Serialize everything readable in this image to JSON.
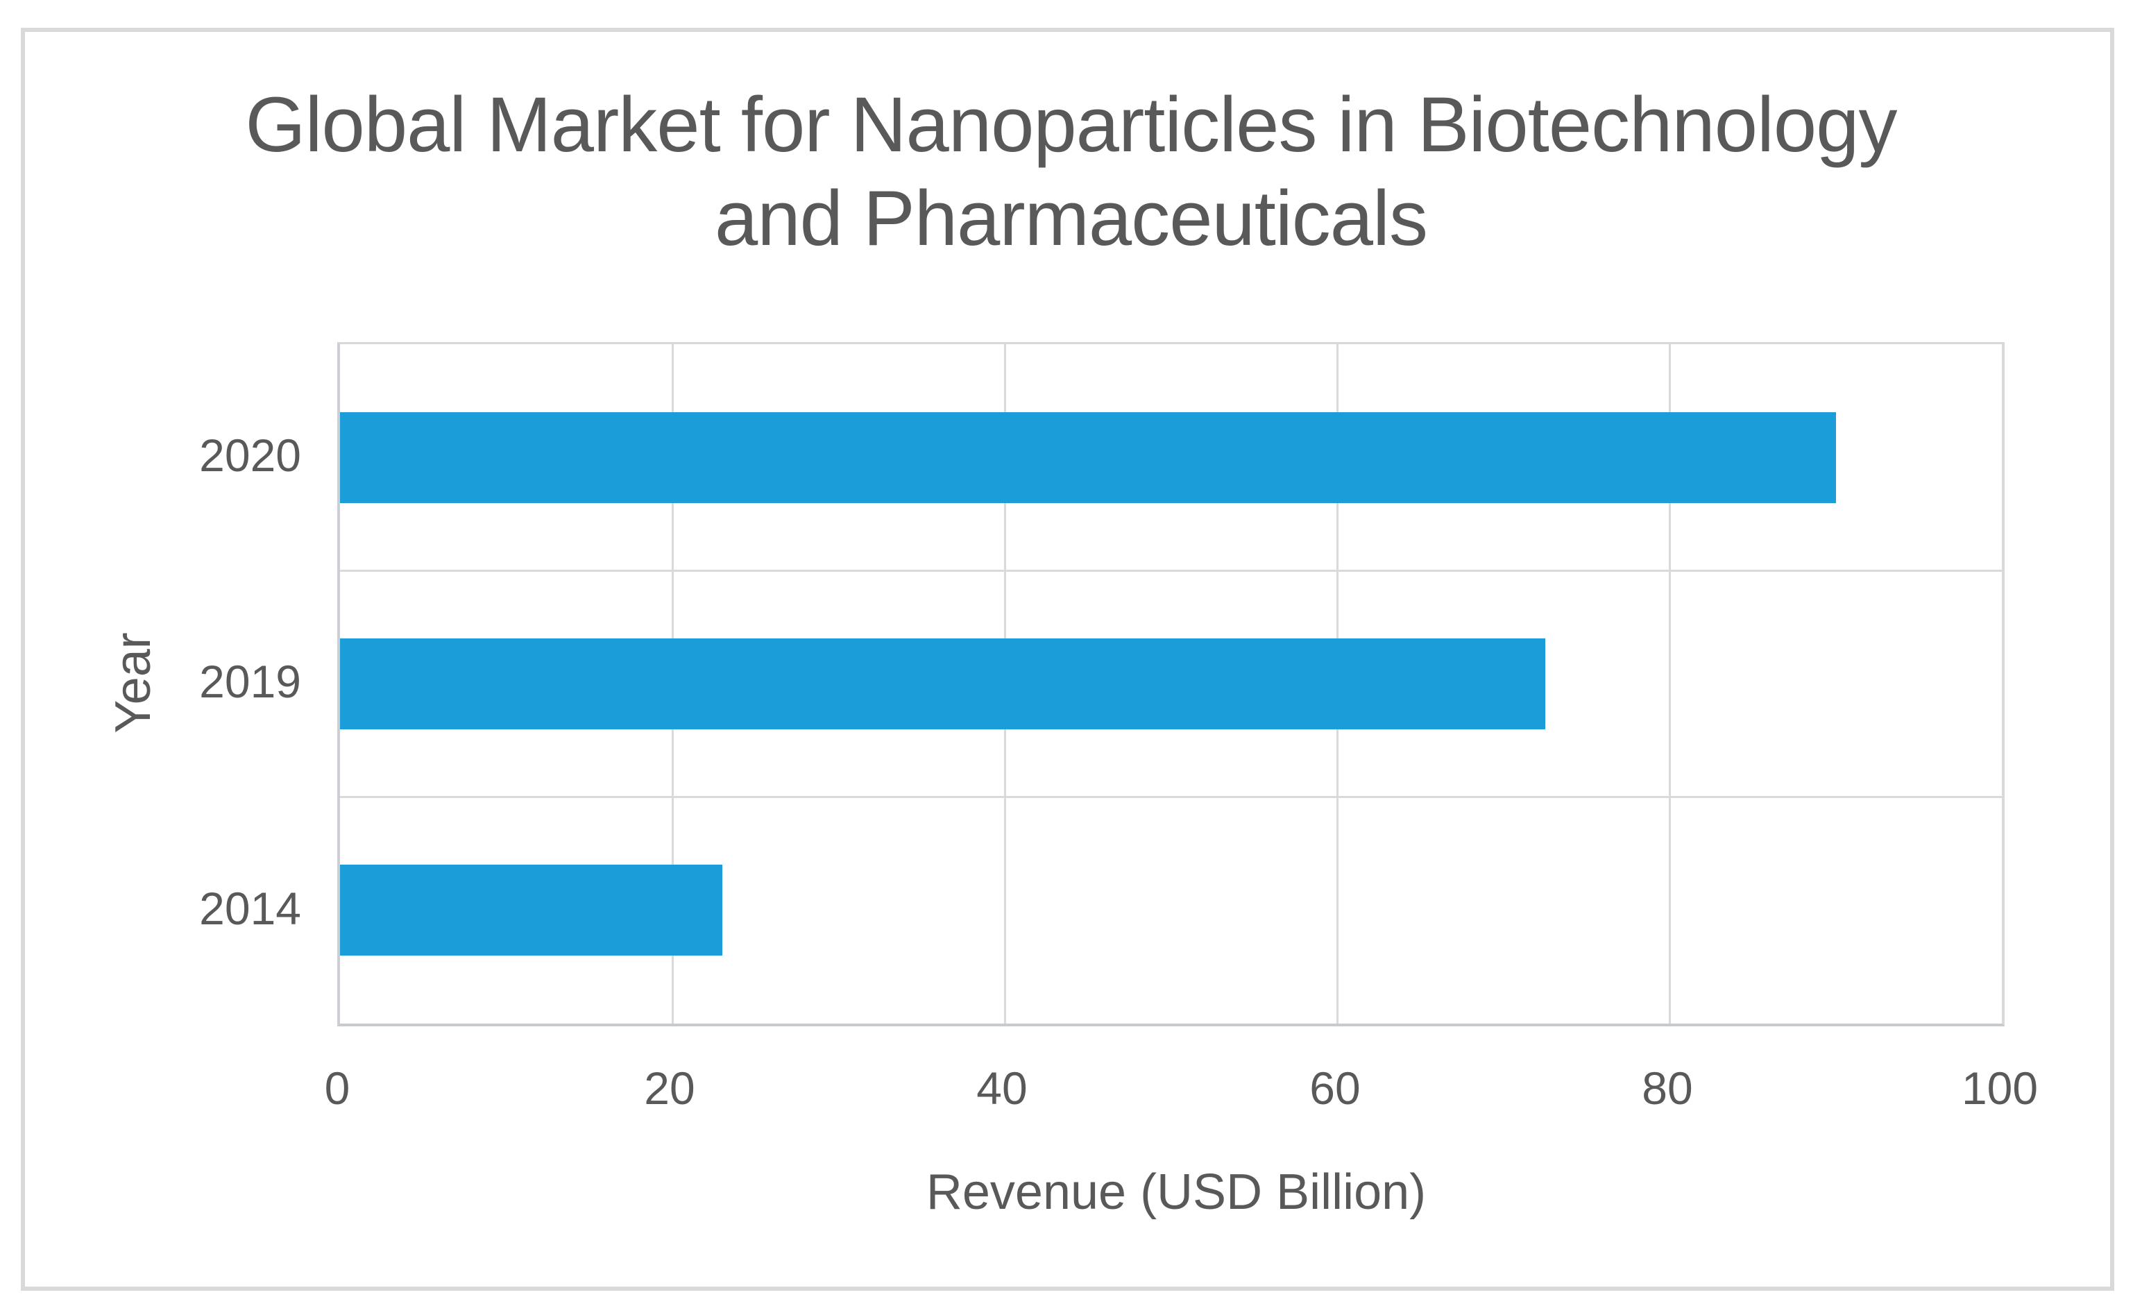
{
  "chart_data": {
    "type": "bar",
    "orientation": "horizontal",
    "title": "Global Market for Nanoparticles in Biotechnology and Pharmaceuticals",
    "title_lines": [
      "Global Market for Nanoparticles in Biotechnology",
      "and Pharmaceuticals"
    ],
    "categories": [
      "2020",
      "2019",
      "2014"
    ],
    "values": [
      90,
      72.5,
      23
    ],
    "xlabel": "Revenue (USD Billion)",
    "ylabel": "Year",
    "xlim": [
      0,
      100
    ],
    "x_ticks": [
      0,
      20,
      40,
      60,
      80,
      100
    ],
    "x_tick_labels": [
      "0",
      "20",
      "40",
      "60",
      "80",
      "100"
    ],
    "grid": true,
    "legend": "none",
    "bar_color": "#1b9dd9",
    "text_color": "#595959",
    "gridline_color": "#dadada",
    "axis_line_color": "#ccd0d4",
    "frame_border_color": "#d9d9d9",
    "background_color": "#ffffff"
  }
}
